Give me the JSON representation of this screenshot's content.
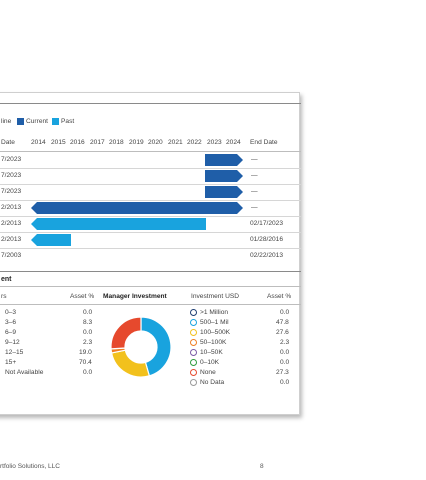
{
  "timeline": {
    "legend_prefix": "line",
    "legend": [
      {
        "label": "Current",
        "color": "#1f5ea8"
      },
      {
        "label": "Past",
        "color": "#19a3de"
      }
    ],
    "date_header": "Date",
    "years": [
      "2014",
      "2015",
      "2016",
      "2017",
      "2018",
      "2019",
      "2020",
      "2021",
      "2022",
      "2023",
      "2024"
    ],
    "end_header": "End Date",
    "rows": [
      {
        "start": "7/2023",
        "end": "—",
        "status": "current"
      },
      {
        "start": "7/2023",
        "end": "—",
        "status": "current"
      },
      {
        "start": "7/2023",
        "end": "—",
        "status": "current"
      },
      {
        "start": "2/2013",
        "end": "—",
        "status": "current"
      },
      {
        "start": "2/2013",
        "end": "02/17/2023",
        "status": "past"
      },
      {
        "start": "2/2013",
        "end": "01/28/2016",
        "status": "past"
      },
      {
        "start": "7/2003",
        "end": "02/22/2013",
        "status": "past"
      }
    ]
  },
  "investment": {
    "title": "ent",
    "col_years": "rs",
    "col_asset": "Asset %",
    "chart_title": "Manager Investment",
    "col_usd": "Investment USD",
    "col_usd_asset": "Asset %",
    "tenure": [
      {
        "label": "0–3",
        "asset": "0.0"
      },
      {
        "label": "3–6",
        "asset": "8.3"
      },
      {
        "label": "6–9",
        "asset": "0.0"
      },
      {
        "label": "9–12",
        "asset": "2.3"
      },
      {
        "label": "12–15",
        "asset": "19.0"
      },
      {
        "label": "15+",
        "asset": "70.4"
      },
      {
        "label": "Not Available",
        "asset": "0.0"
      }
    ],
    "usd": [
      {
        "label": ">1 Million",
        "asset": "0.0",
        "color": "#1f3f73"
      },
      {
        "label": "500–1 Mil",
        "asset": "47.8",
        "color": "#19a3de"
      },
      {
        "label": "100–500K",
        "asset": "27.6",
        "color": "#f2c11d"
      },
      {
        "label": "50–100K",
        "asset": "2.3",
        "color": "#ef7d22"
      },
      {
        "label": "10–50K",
        "asset": "0.0",
        "color": "#7a5aa6"
      },
      {
        "label": "0–10K",
        "asset": "0.0",
        "color": "#2e9b3c"
      },
      {
        "label": "None",
        "asset": "27.3",
        "color": "#e6492d"
      },
      {
        "label": "No Data",
        "asset": "0.0",
        "color": "#9a9a9a"
      }
    ]
  },
  "chart_data": {
    "type": "pie",
    "title": "Manager Investment",
    "categories": [
      "500–1 Mil",
      "100–500K",
      "50–100K",
      "None"
    ],
    "values": [
      47.8,
      27.6,
      2.3,
      27.3
    ],
    "colors": [
      "#19a3de",
      "#f2c11d",
      "#ef7d22",
      "#e6492d"
    ]
  },
  "footer": {
    "source": "rtfolio Solutions, LLC",
    "page": "8"
  }
}
